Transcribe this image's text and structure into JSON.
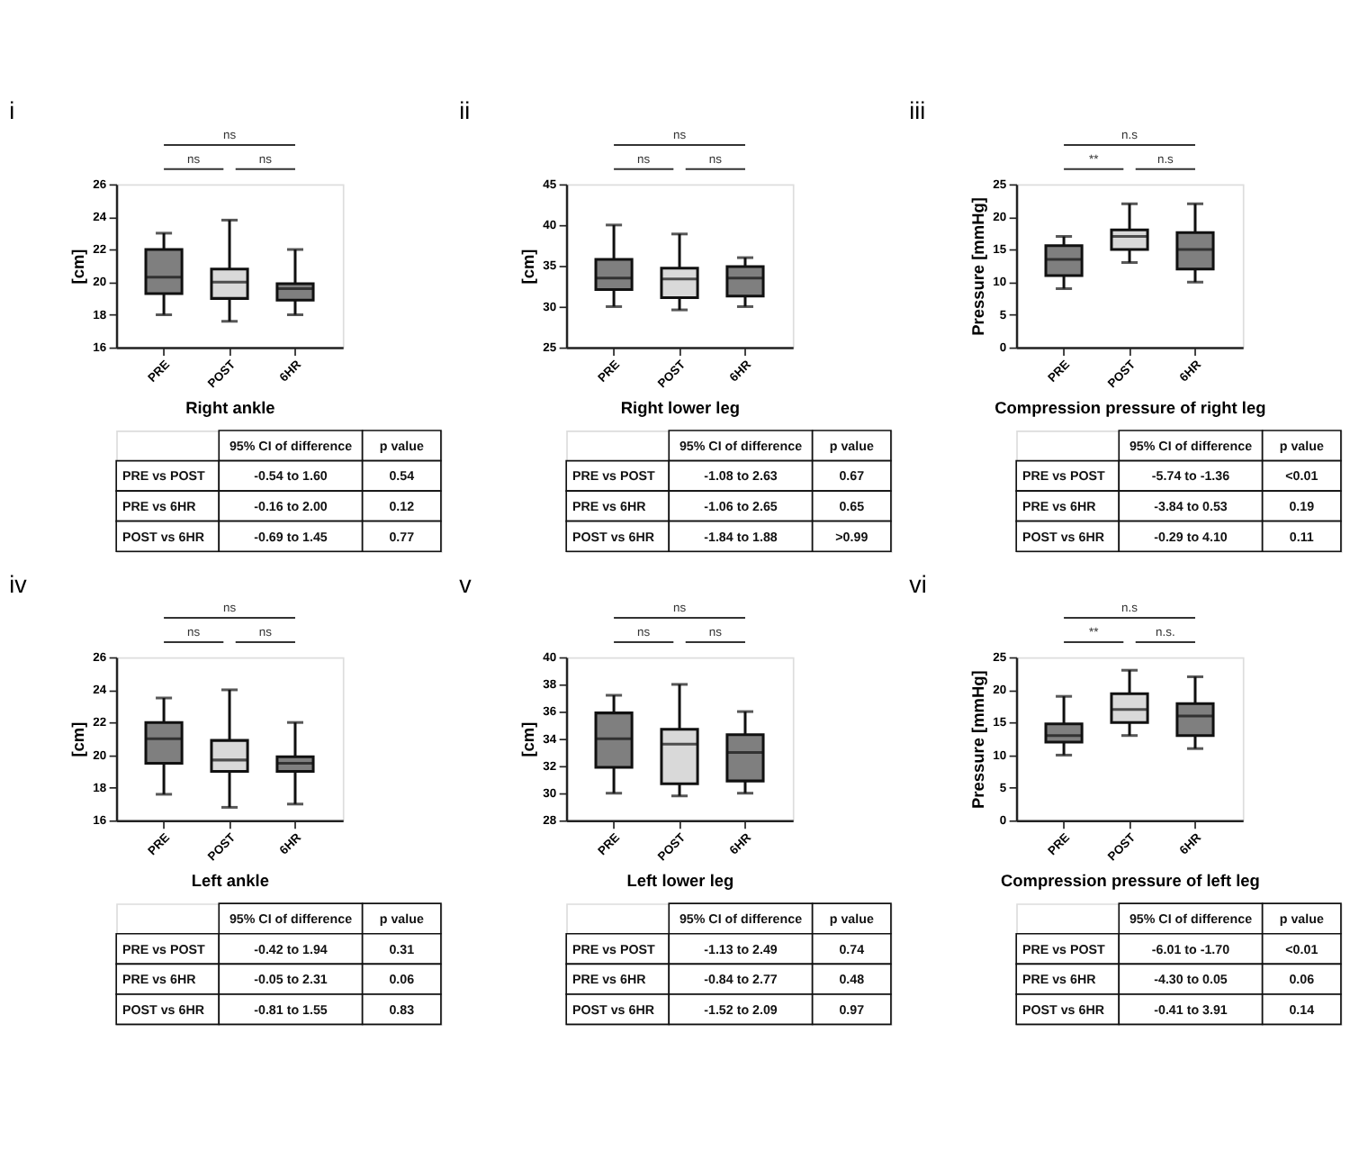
{
  "chart_data": [
    {
      "type": "box",
      "title": "i",
      "xlabel": "Right ankle",
      "ylabel": "[cm]",
      "categories": [
        "PRE",
        "POST",
        "6HR"
      ],
      "colors": [
        "#7f7f7f",
        "#d9d9d9",
        "#7f7f7f"
      ],
      "ylim": [
        16,
        26
      ],
      "yticks": [
        16,
        18,
        20,
        22,
        24,
        26
      ],
      "grid": false,
      "legend": false,
      "boxes": [
        {
          "low": 18,
          "q1": 19.3,
          "median": 20.3,
          "q3": 22,
          "high": 23
        },
        {
          "low": 17.6,
          "q1": 19,
          "median": 20,
          "q3": 20.8,
          "high": 23.8
        },
        {
          "low": 18,
          "q1": 18.9,
          "median": 19.6,
          "q3": 19.9,
          "high": 22
        }
      ],
      "annotations": [
        "ns",
        "ns",
        "ns",
        "95% CI of difference",
        "p value",
        "PRE vs POST",
        "-0.54 to 1.60",
        "0.54",
        "PRE vs 6HR",
        "-0.16 to 2.00",
        "0.12",
        "POST vs 6HR",
        "-0.69 to 1.45",
        "0.77"
      ]
    },
    {
      "type": "box",
      "title": "ii",
      "xlabel": "Right lower leg",
      "ylabel": "[cm]",
      "categories": [
        "PRE",
        "POST",
        "6HR"
      ],
      "colors": [
        "#7f7f7f",
        "#d9d9d9",
        "#7f7f7f"
      ],
      "ylim": [
        25,
        45
      ],
      "yticks": [
        25,
        30,
        35,
        40,
        45
      ],
      "grid": false,
      "legend": false,
      "boxes": [
        {
          "low": 30,
          "q1": 32.1,
          "median": 33.5,
          "q3": 35.8,
          "high": 40
        },
        {
          "low": 29.6,
          "q1": 31.1,
          "median": 33.4,
          "q3": 34.7,
          "high": 38.9
        },
        {
          "low": 30,
          "q1": 31.3,
          "median": 33.5,
          "q3": 34.9,
          "high": 36
        }
      ],
      "annotations": [
        "ns",
        "ns",
        "ns",
        "95% CI of difference",
        "p value",
        "PRE vs POST",
        "-1.08 to 2.63",
        "0.67",
        "PRE vs 6HR",
        "-1.06 to 2.65",
        "0.65",
        "POST vs 6HR",
        "-1.84 to 1.88",
        ">0.99"
      ]
    },
    {
      "type": "box",
      "title": "iii",
      "xlabel": "Compression pressure of right leg",
      "ylabel": "Pressure [mmHg]",
      "categories": [
        "PRE",
        "POST",
        "6HR"
      ],
      "colors": [
        "#7f7f7f",
        "#d9d9d9",
        "#7f7f7f"
      ],
      "ylim": [
        0,
        25
      ],
      "yticks": [
        0,
        5,
        10,
        15,
        20,
        25
      ],
      "grid": false,
      "legend": false,
      "boxes": [
        {
          "low": 9,
          "q1": 11,
          "median": 13.5,
          "q3": 15.6,
          "high": 17
        },
        {
          "low": 13,
          "q1": 15,
          "median": 17,
          "q3": 18,
          "high": 22
        },
        {
          "low": 10,
          "q1": 12,
          "median": 15,
          "q3": 17.6,
          "high": 22
        }
      ],
      "annotations": [
        "n.s",
        "**",
        "n.s",
        "95% CI of difference",
        "p value",
        "PRE vs POST",
        "-5.74 to -1.36",
        "<0.01",
        "PRE vs 6HR",
        "-3.84 to 0.53",
        "0.19",
        "POST vs 6HR",
        "-0.29 to 4.10",
        "0.11"
      ]
    },
    {
      "type": "box",
      "title": "iv",
      "xlabel": "Left ankle",
      "ylabel": "[cm]",
      "categories": [
        "PRE",
        "POST",
        "6HR"
      ],
      "colors": [
        "#7f7f7f",
        "#d9d9d9",
        "#7f7f7f"
      ],
      "ylim": [
        16,
        26
      ],
      "yticks": [
        16,
        18,
        20,
        22,
        24,
        26
      ],
      "grid": false,
      "legend": false,
      "boxes": [
        {
          "low": 17.6,
          "q1": 19.5,
          "median": 21,
          "q3": 22,
          "high": 23.5
        },
        {
          "low": 16.8,
          "q1": 19,
          "median": 19.7,
          "q3": 20.9,
          "high": 24
        },
        {
          "low": 17,
          "q1": 19,
          "median": 19.5,
          "q3": 19.9,
          "high": 22
        }
      ],
      "annotations": [
        "ns",
        "ns",
        "ns",
        "95% CI of difference",
        "p value",
        "PRE vs POST",
        "-0.42 to 1.94",
        "0.31",
        "PRE vs 6HR",
        "-0.05 to 2.31",
        "0.06",
        "POST vs 6HR",
        "-0.81 to 1.55",
        "0.83"
      ]
    },
    {
      "type": "box",
      "title": "v",
      "xlabel": "Left lower leg",
      "ylabel": "[cm]",
      "categories": [
        "PRE",
        "POST",
        "6HR"
      ],
      "colors": [
        "#7f7f7f",
        "#d9d9d9",
        "#7f7f7f"
      ],
      "ylim": [
        28,
        40
      ],
      "yticks": [
        28,
        30,
        32,
        34,
        36,
        38,
        40
      ],
      "grid": false,
      "legend": false,
      "boxes": [
        {
          "low": 30,
          "q1": 31.9,
          "median": 34,
          "q3": 35.9,
          "high": 37.2
        },
        {
          "low": 29.8,
          "q1": 30.7,
          "median": 33.6,
          "q3": 34.7,
          "high": 38
        },
        {
          "low": 30,
          "q1": 30.9,
          "median": 33,
          "q3": 34.3,
          "high": 36
        }
      ],
      "annotations": [
        "ns",
        "ns",
        "ns",
        "95% CI of difference",
        "p value",
        "PRE vs POST",
        "-1.13 to 2.49",
        "0.74",
        "PRE vs 6HR",
        "-0.84 to 2.77",
        "0.48",
        "POST vs 6HR",
        "-1.52 to 2.09",
        "0.97"
      ]
    },
    {
      "type": "box",
      "title": "vi",
      "xlabel": "Compression pressure of left leg",
      "ylabel": "Pressure [mmHg]",
      "categories": [
        "PRE",
        "POST",
        "6HR"
      ],
      "colors": [
        "#7f7f7f",
        "#d9d9d9",
        "#7f7f7f"
      ],
      "ylim": [
        0,
        25
      ],
      "yticks": [
        0,
        5,
        10,
        15,
        20,
        25
      ],
      "grid": false,
      "legend": false,
      "boxes": [
        {
          "low": 10,
          "q1": 12,
          "median": 13,
          "q3": 14.8,
          "high": 19
        },
        {
          "low": 13,
          "q1": 15,
          "median": 17,
          "q3": 19.4,
          "high": 23
        },
        {
          "low": 11,
          "q1": 13,
          "median": 16,
          "q3": 17.9,
          "high": 22
        }
      ],
      "annotations": [
        "n.s",
        "**",
        "n.s.",
        "95% CI of difference",
        "p value",
        "PRE vs POST",
        "-6.01 to -1.70",
        "<0.01",
        "PRE vs 6HR",
        "-4.30 to 0.05",
        "0.06",
        "POST vs 6HR",
        "-0.41 to 3.91",
        "0.14"
      ]
    }
  ]
}
